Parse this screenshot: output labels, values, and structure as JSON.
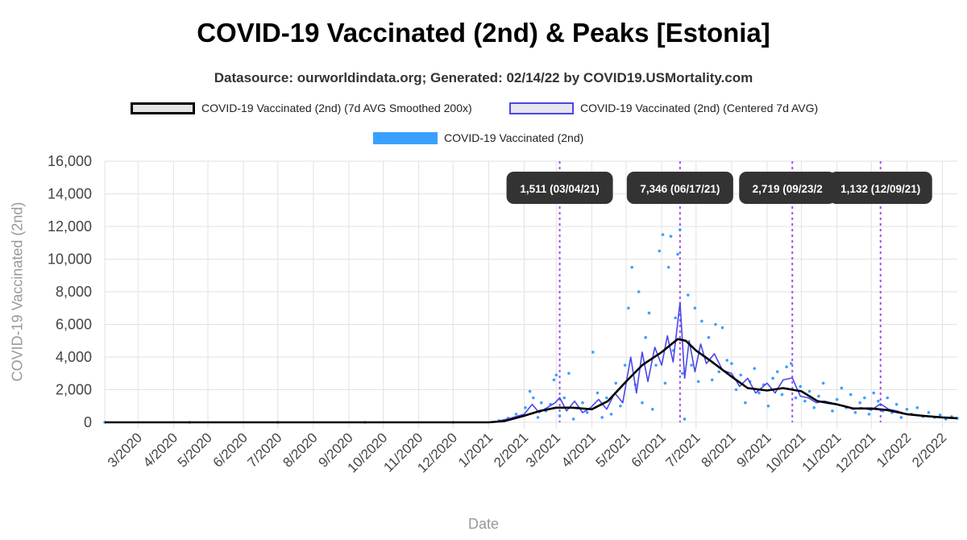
{
  "title": "COVID-19 Vaccinated (2nd) & Peaks [Estonia]",
  "subtitle": "Datasource: ourworldindata.org; Generated: 02/14/22 by COVID19.USMortality.com",
  "legend": [
    {
      "label": "COVID-19 Vaccinated (2nd) (7d AVG Smoothed 200x)",
      "color": "#000000"
    },
    {
      "label": "COVID-19 Vaccinated (2nd) (Centered 7d AVG)",
      "color": "#4b47e6"
    },
    {
      "label": "COVID-19 Vaccinated (2nd)",
      "color": "#3aa0ff"
    }
  ],
  "chart_data": {
    "type": "line",
    "xlabel": "Date",
    "ylabel": "COVID-19 Vaccinated (2nd)",
    "ylim": [
      0,
      16000
    ],
    "yticks": [
      0,
      2000,
      4000,
      6000,
      8000,
      10000,
      12000,
      14000,
      16000
    ],
    "ytick_labels": [
      "0",
      "2,000",
      "4,000",
      "6,000",
      "8,000",
      "10,000",
      "12,000",
      "14,000",
      "16,000"
    ],
    "x_range": [
      "2020-02-01",
      "2022-02-14"
    ],
    "xtick_labels": [
      "3/2020",
      "4/2020",
      "5/2020",
      "6/2020",
      "7/2020",
      "8/2020",
      "9/2020",
      "10/2020",
      "11/2020",
      "12/2020",
      "1/2021",
      "2/2021",
      "3/2021",
      "4/2021",
      "5/2021",
      "6/2021",
      "7/2021",
      "8/2021",
      "9/2021",
      "10/2021",
      "11/2021",
      "12/2021",
      "1/2022",
      "2/2022"
    ],
    "grid": true,
    "legend_position": "top",
    "series": [
      {
        "name": "COVID-19 Vaccinated (2nd) (7d AVG Smoothed 200x)",
        "color": "#000000",
        "points": [
          [
            "2020-02-01",
            0
          ],
          [
            "2021-01-01",
            0
          ],
          [
            "2021-01-15",
            80
          ],
          [
            "2021-02-01",
            400
          ],
          [
            "2021-02-15",
            700
          ],
          [
            "2021-03-01",
            900
          ],
          [
            "2021-03-15",
            900
          ],
          [
            "2021-04-01",
            800
          ],
          [
            "2021-04-15",
            1300
          ],
          [
            "2021-05-01",
            2500
          ],
          [
            "2021-05-15",
            3500
          ],
          [
            "2021-06-01",
            4300
          ],
          [
            "2021-06-15",
            5100
          ],
          [
            "2021-06-22",
            5000
          ],
          [
            "2021-07-01",
            4400
          ],
          [
            "2021-07-15",
            3700
          ],
          [
            "2021-08-01",
            2800
          ],
          [
            "2021-08-15",
            2100
          ],
          [
            "2021-09-01",
            1950
          ],
          [
            "2021-09-15",
            2100
          ],
          [
            "2021-10-01",
            1900
          ],
          [
            "2021-10-15",
            1300
          ],
          [
            "2021-11-01",
            1100
          ],
          [
            "2021-11-15",
            850
          ],
          [
            "2021-12-01",
            850
          ],
          [
            "2021-12-15",
            750
          ],
          [
            "2022-01-01",
            500
          ],
          [
            "2022-01-15",
            400
          ],
          [
            "2022-02-01",
            300
          ],
          [
            "2022-02-14",
            250
          ]
        ]
      },
      {
        "name": "COVID-19 Vaccinated (2nd) (Centered 7d AVG)",
        "color": "#4b47e6",
        "points": [
          [
            "2020-02-01",
            0
          ],
          [
            "2021-01-05",
            0
          ],
          [
            "2021-01-20",
            250
          ],
          [
            "2021-02-01",
            500
          ],
          [
            "2021-02-08",
            1100
          ],
          [
            "2021-02-14",
            600
          ],
          [
            "2021-02-21",
            900
          ],
          [
            "2021-02-28",
            1200
          ],
          [
            "2021-03-04",
            1511
          ],
          [
            "2021-03-10",
            700
          ],
          [
            "2021-03-17",
            1300
          ],
          [
            "2021-03-24",
            600
          ],
          [
            "2021-03-31",
            900
          ],
          [
            "2021-04-07",
            1400
          ],
          [
            "2021-04-14",
            800
          ],
          [
            "2021-04-21",
            1800
          ],
          [
            "2021-04-28",
            1200
          ],
          [
            "2021-05-05",
            4000
          ],
          [
            "2021-05-10",
            1800
          ],
          [
            "2021-05-15",
            4300
          ],
          [
            "2021-05-20",
            2500
          ],
          [
            "2021-05-26",
            4600
          ],
          [
            "2021-06-01",
            3500
          ],
          [
            "2021-06-06",
            5300
          ],
          [
            "2021-06-11",
            3700
          ],
          [
            "2021-06-17",
            7346
          ],
          [
            "2021-06-21",
            2700
          ],
          [
            "2021-06-25",
            5000
          ],
          [
            "2021-06-30",
            3100
          ],
          [
            "2021-07-05",
            4800
          ],
          [
            "2021-07-10",
            3600
          ],
          [
            "2021-07-17",
            4200
          ],
          [
            "2021-07-24",
            3200
          ],
          [
            "2021-08-01",
            3000
          ],
          [
            "2021-08-08",
            2200
          ],
          [
            "2021-08-15",
            2700
          ],
          [
            "2021-08-22",
            1800
          ],
          [
            "2021-09-01",
            2400
          ],
          [
            "2021-09-08",
            1800
          ],
          [
            "2021-09-15",
            2600
          ],
          [
            "2021-09-23",
            2719
          ],
          [
            "2021-09-30",
            1600
          ],
          [
            "2021-10-07",
            1500
          ],
          [
            "2021-10-14",
            1200
          ],
          [
            "2021-10-21",
            1300
          ],
          [
            "2021-11-01",
            1100
          ],
          [
            "2021-11-08",
            1000
          ],
          [
            "2021-11-15",
            800
          ],
          [
            "2021-11-22",
            900
          ],
          [
            "2021-12-01",
            750
          ],
          [
            "2021-12-09",
            1132
          ],
          [
            "2021-12-16",
            800
          ],
          [
            "2021-12-23",
            700
          ],
          [
            "2022-01-01",
            500
          ],
          [
            "2022-01-10",
            450
          ],
          [
            "2022-01-20",
            380
          ],
          [
            "2022-02-01",
            300
          ],
          [
            "2022-02-14",
            230
          ]
        ]
      },
      {
        "name": "COVID-19 Vaccinated (2nd)",
        "color": "#3aa0ff",
        "style": "points",
        "points": [
          [
            "2020-02-01",
            0
          ],
          [
            "2020-04-15",
            0
          ],
          [
            "2020-07-01",
            0
          ],
          [
            "2020-09-15",
            0
          ],
          [
            "2020-12-01",
            0
          ],
          [
            "2021-01-10",
            100
          ],
          [
            "2021-01-18",
            250
          ],
          [
            "2021-01-25",
            500
          ],
          [
            "2021-02-02",
            900
          ],
          [
            "2021-02-06",
            1900
          ],
          [
            "2021-02-09",
            1500
          ],
          [
            "2021-02-13",
            300
          ],
          [
            "2021-02-16",
            1200
          ],
          [
            "2021-02-20",
            700
          ],
          [
            "2021-02-24",
            1100
          ],
          [
            "2021-02-27",
            2600
          ],
          [
            "2021-03-01",
            2900
          ],
          [
            "2021-03-04",
            400
          ],
          [
            "2021-03-08",
            1500
          ],
          [
            "2021-03-12",
            3000
          ],
          [
            "2021-03-16",
            200
          ],
          [
            "2021-03-20",
            900
          ],
          [
            "2021-03-24",
            1200
          ],
          [
            "2021-03-28",
            600
          ],
          [
            "2021-04-02",
            4300
          ],
          [
            "2021-04-06",
            1800
          ],
          [
            "2021-04-10",
            300
          ],
          [
            "2021-04-14",
            1500
          ],
          [
            "2021-04-18",
            500
          ],
          [
            "2021-04-22",
            2400
          ],
          [
            "2021-04-26",
            1000
          ],
          [
            "2021-04-30",
            3500
          ],
          [
            "2021-05-03",
            7000
          ],
          [
            "2021-05-06",
            9500
          ],
          [
            "2021-05-09",
            2300
          ],
          [
            "2021-05-12",
            8000
          ],
          [
            "2021-05-15",
            1200
          ],
          [
            "2021-05-18",
            5200
          ],
          [
            "2021-05-21",
            6700
          ],
          [
            "2021-05-24",
            800
          ],
          [
            "2021-05-27",
            3500
          ],
          [
            "2021-05-30",
            10500
          ],
          [
            "2021-06-02",
            11500
          ],
          [
            "2021-06-04",
            2400
          ],
          [
            "2021-06-07",
            9500
          ],
          [
            "2021-06-09",
            11400
          ],
          [
            "2021-06-11",
            4400
          ],
          [
            "2021-06-13",
            6400
          ],
          [
            "2021-06-15",
            10300
          ],
          [
            "2021-06-17",
            11800
          ],
          [
            "2021-06-19",
            3000
          ],
          [
            "2021-06-21",
            200
          ],
          [
            "2021-06-24",
            7800
          ],
          [
            "2021-06-27",
            3500
          ],
          [
            "2021-06-30",
            7000
          ],
          [
            "2021-07-03",
            2500
          ],
          [
            "2021-07-06",
            6200
          ],
          [
            "2021-07-09",
            4000
          ],
          [
            "2021-07-12",
            5200
          ],
          [
            "2021-07-15",
            2600
          ],
          [
            "2021-07-18",
            6000
          ],
          [
            "2021-07-21",
            3100
          ],
          [
            "2021-07-24",
            5800
          ],
          [
            "2021-07-28",
            3800
          ],
          [
            "2021-08-01",
            3600
          ],
          [
            "2021-08-05",
            2000
          ],
          [
            "2021-08-09",
            2900
          ],
          [
            "2021-08-13",
            1200
          ],
          [
            "2021-08-17",
            2500
          ],
          [
            "2021-08-21",
            3300
          ],
          [
            "2021-08-25",
            1800
          ],
          [
            "2021-08-29",
            2300
          ],
          [
            "2021-09-02",
            1000
          ],
          [
            "2021-09-06",
            2700
          ],
          [
            "2021-09-10",
            3100
          ],
          [
            "2021-09-14",
            1700
          ],
          [
            "2021-09-18",
            3400
          ],
          [
            "2021-09-22",
            3600
          ],
          [
            "2021-09-26",
            1500
          ],
          [
            "2021-09-30",
            2200
          ],
          [
            "2021-10-04",
            1300
          ],
          [
            "2021-10-08",
            1900
          ],
          [
            "2021-10-12",
            900
          ],
          [
            "2021-10-16",
            1600
          ],
          [
            "2021-10-20",
            2400
          ],
          [
            "2021-10-24",
            1200
          ],
          [
            "2021-10-28",
            700
          ],
          [
            "2021-11-01",
            1400
          ],
          [
            "2021-11-05",
            2100
          ],
          [
            "2021-11-09",
            900
          ],
          [
            "2021-11-13",
            1700
          ],
          [
            "2021-11-17",
            600
          ],
          [
            "2021-11-21",
            1200
          ],
          [
            "2021-11-25",
            1500
          ],
          [
            "2021-11-29",
            500
          ],
          [
            "2021-12-03",
            1800
          ],
          [
            "2021-12-07",
            1300
          ],
          [
            "2021-12-11",
            700
          ],
          [
            "2021-12-15",
            1500
          ],
          [
            "2021-12-19",
            600
          ],
          [
            "2021-12-23",
            1100
          ],
          [
            "2021-12-27",
            300
          ],
          [
            "2022-01-01",
            800
          ],
          [
            "2022-01-05",
            500
          ],
          [
            "2022-01-10",
            900
          ],
          [
            "2022-01-15",
            350
          ],
          [
            "2022-01-20",
            600
          ],
          [
            "2022-01-25",
            300
          ],
          [
            "2022-01-30",
            450
          ],
          [
            "2022-02-04",
            200
          ],
          [
            "2022-02-09",
            350
          ],
          [
            "2022-02-14",
            250
          ]
        ]
      }
    ],
    "peaks": [
      {
        "date": "2021-03-04",
        "value": 1511,
        "label": "1,511 (03/04/21)"
      },
      {
        "date": "2021-06-17",
        "value": 7346,
        "label": "7,346 (06/17/21)"
      },
      {
        "date": "2021-09-23",
        "value": 2719,
        "label": "2,719 (09/23/2"
      },
      {
        "date": "2021-12-09",
        "value": 1132,
        "label": "1,132 (12/09/21)"
      }
    ]
  }
}
